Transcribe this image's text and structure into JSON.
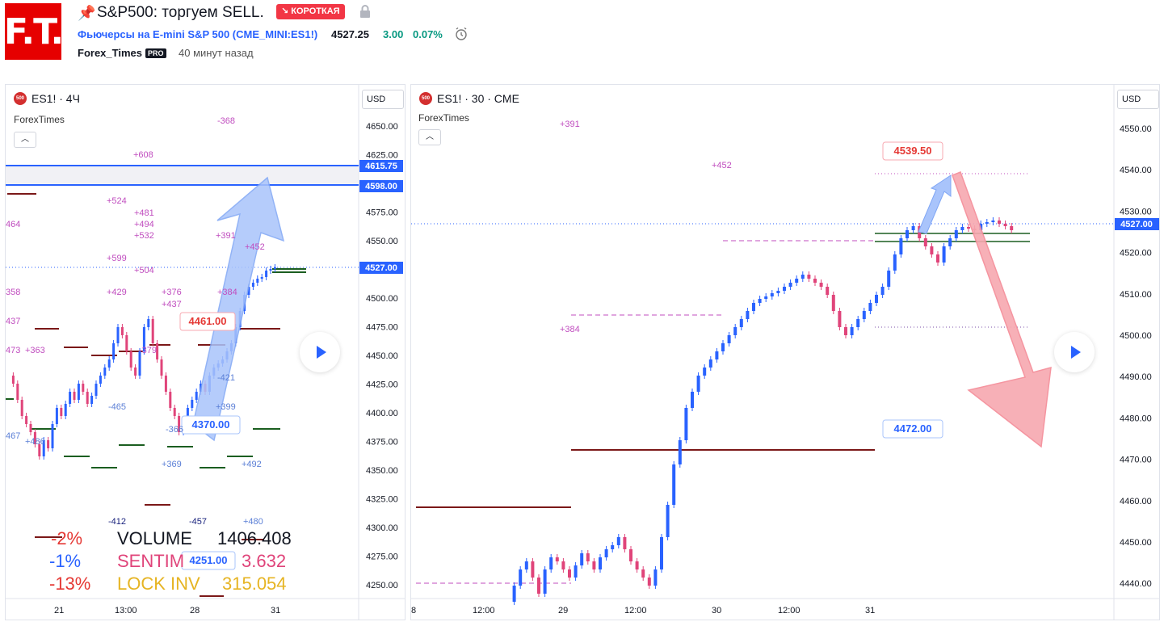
{
  "header": {
    "logo_text": "F.T.",
    "title": "S&P500: торгуем SELL.",
    "badge": "↘ КОРОТКАЯ",
    "symbol_desc": "Фьючерсы на E-mini S&P 500 (CME_MINI:ES1!)",
    "price": "4527.25",
    "change": "3.00",
    "change_pct": "0.07%",
    "author": "Forex_Times",
    "pro_badge": "PRO",
    "time_ago": "40 минут назад"
  },
  "colors": {
    "accent": "#2962ff",
    "down": "#f23645",
    "up": "#089981",
    "bear_arrow": "#f7a8b0",
    "bull_arrow": "#a9c4fb"
  },
  "left_chart": {
    "icon": "500",
    "title": "ES1! · 4Ч",
    "author": "ForexTimes",
    "currency": "USD",
    "price_scale": [
      "4650.00",
      "4625.00",
      "4600.00",
      "4575.00",
      "4550.00",
      "4525.00",
      "4500.00",
      "4475.00",
      "4450.00",
      "4425.00",
      "4400.00",
      "4375.00",
      "4350.00",
      "4325.00",
      "4300.00",
      "4275.00",
      "4250.00"
    ],
    "time_labels": [
      "21",
      "13:00",
      "28",
      "31"
    ],
    "level_labels": [
      "4615.75",
      "4598.00",
      "4527.00"
    ],
    "callouts": [
      "4461.00",
      "4370.00",
      "4251.00"
    ],
    "plot_labels_pink": [
      "-368",
      "+608",
      "+524",
      "+481",
      "+494",
      "+532",
      "+391",
      "+452",
      "+599",
      "+504",
      "+429",
      "+376",
      "+437",
      "+384",
      "464",
      "358",
      "437",
      "473",
      "+363",
      "-379"
    ],
    "plot_labels_blue": [
      "-421",
      "+399",
      "+369",
      "+492",
      "-412",
      "-457",
      "+480",
      "-465",
      "-366",
      "467",
      "+486"
    ],
    "stats": [
      {
        "pct": "-2%",
        "label": "VOLUME",
        "value": "1406.408"
      },
      {
        "pct": "-1%",
        "label": "SENTIM",
        "value": "3.632"
      },
      {
        "pct": "-13%",
        "label": "LOCK INV",
        "value": "315.054"
      }
    ]
  },
  "right_chart": {
    "icon": "500",
    "title": "ES1! · 30 · CME",
    "author": "ForexTimes",
    "currency": "USD",
    "price_scale": [
      "4550.00",
      "4540.00",
      "4530.00",
      "4527.00",
      "4520.00",
      "4510.00",
      "4500.00",
      "4490.00",
      "4480.00",
      "4470.00",
      "4460.00",
      "4450.00",
      "4440.00"
    ],
    "time_labels": [
      "8",
      "12:00",
      "29",
      "12:00",
      "30",
      "12:00",
      "31"
    ],
    "callouts": [
      "4539.50",
      "4472.00"
    ],
    "plot_labels": [
      "+391",
      "+452",
      "+384"
    ]
  }
}
